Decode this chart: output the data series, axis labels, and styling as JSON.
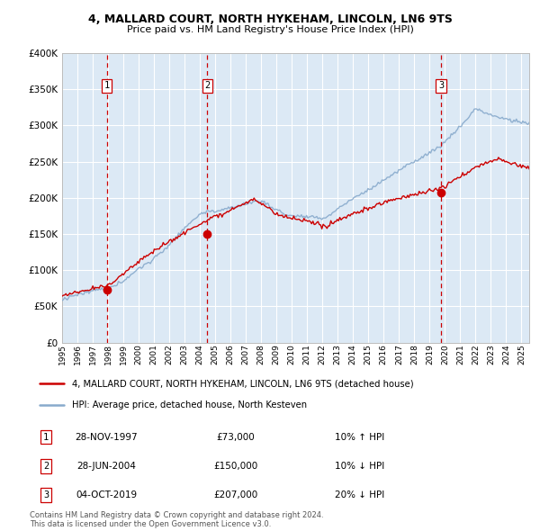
{
  "title": "4, MALLARD COURT, NORTH HYKEHAM, LINCOLN, LN6 9TS",
  "subtitle": "Price paid vs. HM Land Registry's House Price Index (HPI)",
  "ylabel_ticks": [
    "£0",
    "£50K",
    "£100K",
    "£150K",
    "£200K",
    "£250K",
    "£300K",
    "£350K",
    "£400K"
  ],
  "ytick_values": [
    0,
    50000,
    100000,
    150000,
    200000,
    250000,
    300000,
    350000,
    400000
  ],
  "ylim": [
    0,
    400000
  ],
  "background_color": "#ffffff",
  "plot_bg_color": "#dce9f5",
  "grid_color": "#ffffff",
  "sale_color": "#cc0000",
  "hpi_color": "#88aacc",
  "vline_color": "#cc0000",
  "marker_color": "#cc0000",
  "sale_dates": [
    1997.91,
    2004.49,
    2019.75
  ],
  "sale_prices": [
    73000,
    150000,
    207000
  ],
  "sale_labels": [
    "1",
    "2",
    "3"
  ],
  "legend_sale": "4, MALLARD COURT, NORTH HYKEHAM, LINCOLN, LN6 9TS (detached house)",
  "legend_hpi": "HPI: Average price, detached house, North Kesteven",
  "table_rows": [
    {
      "label": "1",
      "date": "28-NOV-1997",
      "price": "£73,000",
      "change": "10% ↑ HPI"
    },
    {
      "label": "2",
      "date": "28-JUN-2004",
      "price": "£150,000",
      "change": "10% ↓ HPI"
    },
    {
      "label": "3",
      "date": "04-OCT-2019",
      "price": "£207,000",
      "change": "20% ↓ HPI"
    }
  ],
  "footnote": "Contains HM Land Registry data © Crown copyright and database right 2024.\nThis data is licensed under the Open Government Licence v3.0.",
  "xmin": 1995.0,
  "xmax": 2025.5
}
